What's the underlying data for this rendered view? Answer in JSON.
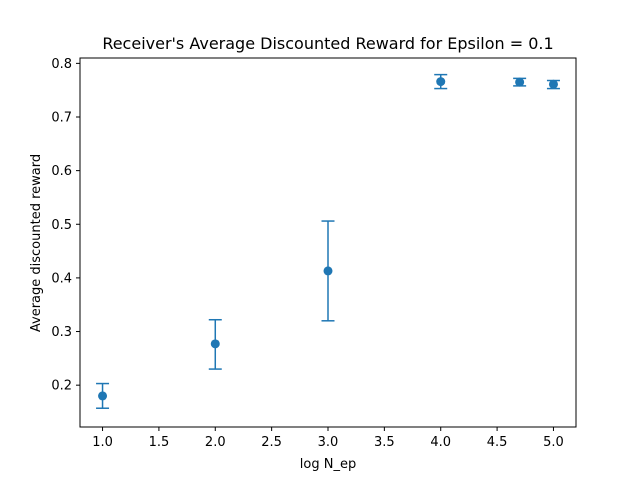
{
  "chart_data": {
    "type": "scatter",
    "title": "Receiver's Average Discounted Reward for Epsilon = 0.1",
    "xlabel": "log N_ep",
    "ylabel": "Average discounted reward",
    "xlim": [
      0.8,
      5.2
    ],
    "ylim": [
      0.122,
      0.81
    ],
    "grid": false,
    "series_color": "#1f77b4",
    "x_ticks": [
      1.0,
      1.5,
      2.0,
      2.5,
      3.0,
      3.5,
      4.0,
      4.5,
      5.0
    ],
    "x_tick_labels": [
      "1.0",
      "1.5",
      "2.0",
      "2.5",
      "3.0",
      "3.5",
      "4.0",
      "4.5",
      "5.0"
    ],
    "y_ticks": [
      0.2,
      0.3,
      0.4,
      0.5,
      0.6,
      0.7,
      0.8
    ],
    "y_tick_labels": [
      "0.2",
      "0.3",
      "0.4",
      "0.5",
      "0.6",
      "0.7",
      "0.8"
    ],
    "points": [
      {
        "x": 1.0,
        "y": 0.18,
        "y_low": 0.157,
        "y_high": 0.203
      },
      {
        "x": 2.0,
        "y": 0.277,
        "y_low": 0.23,
        "y_high": 0.322
      },
      {
        "x": 3.0,
        "y": 0.413,
        "y_low": 0.32,
        "y_high": 0.506
      },
      {
        "x": 4.0,
        "y": 0.766,
        "y_low": 0.753,
        "y_high": 0.779
      },
      {
        "x": 4.7,
        "y": 0.765,
        "y_low": 0.758,
        "y_high": 0.772
      },
      {
        "x": 5.0,
        "y": 0.761,
        "y_low": 0.753,
        "y_high": 0.768
      }
    ]
  }
}
